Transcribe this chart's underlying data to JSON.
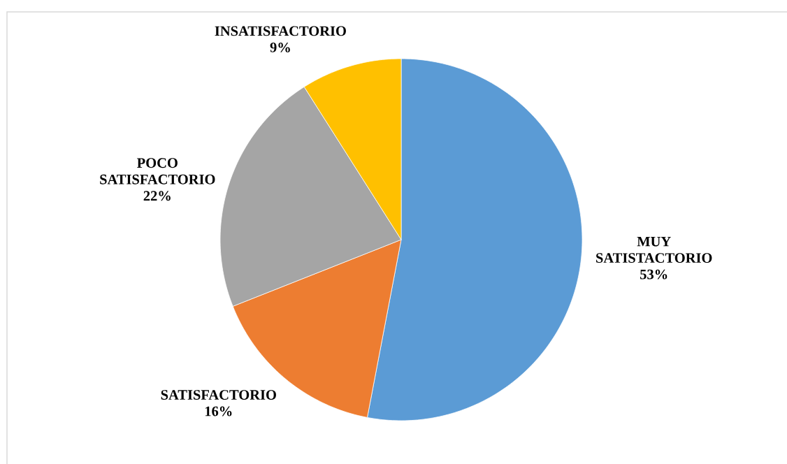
{
  "chart_data": {
    "type": "pie",
    "categories": [
      "MUY SATISTACTORIO",
      "SATISFACTORIO",
      "POCO SATISFACTORIO",
      "INSATISFACTORIO"
    ],
    "values": [
      53,
      16,
      22,
      9
    ],
    "colors": [
      "#5b9bd5",
      "#ed7d31",
      "#a5a5a5",
      "#ffc000"
    ],
    "value_labels": [
      "53%",
      "16%",
      "22%",
      "9%"
    ]
  }
}
